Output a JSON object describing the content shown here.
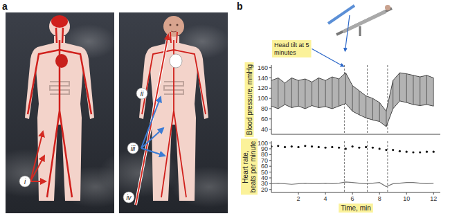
{
  "figure": {
    "panels": [
      {
        "letter": "a",
        "labels": [
          "i",
          "ii",
          "iii",
          "iv"
        ]
      },
      {
        "letter": "b"
      }
    ]
  },
  "chart_data": [
    {
      "type": "range_area",
      "x": [
        0,
        0.5,
        1,
        1.5,
        2,
        2.5,
        3,
        3.5,
        4,
        4.5,
        5,
        5.5,
        6,
        6.5,
        7,
        7.5,
        8,
        8.5,
        9,
        9.5,
        10,
        10.5,
        11,
        11.5,
        12
      ],
      "series": [
        {
          "color": "#333333",
          "values": [
            135,
            140,
            130,
            140,
            135,
            138,
            132,
            140,
            135,
            142,
            138,
            150,
            125,
            115,
            105,
            100,
            92,
            75,
            135,
            150,
            148,
            145,
            142,
            145,
            140
          ]
        },
        {
          "color": "#333333",
          "values": [
            85,
            80,
            88,
            82,
            85,
            80,
            86,
            82,
            84,
            80,
            85,
            90,
            75,
            68,
            62,
            58,
            55,
            45,
            80,
            95,
            92,
            88,
            86,
            88,
            85
          ]
        }
      ],
      "xlim": [
        0,
        12.5
      ],
      "ylim": [
        30,
        165
      ],
      "yticks": [
        40,
        60,
        80,
        100,
        120,
        140,
        160
      ],
      "y_label": "Blood pressure, mmHg",
      "tick_labels": "y",
      "grid": false,
      "annotation": {
        "text": "Head tilt at 5 minutes",
        "x": 5.4
      },
      "event_times": [
        5.4,
        7.1,
        8.6
      ]
    },
    {
      "type": "line",
      "x": [
        0,
        0.5,
        1,
        1.5,
        2,
        2.5,
        3,
        3.5,
        4,
        4.5,
        5,
        5.5,
        6,
        6.5,
        7,
        7.5,
        8,
        8.5,
        9,
        9.5,
        10,
        10.5,
        11,
        11.5,
        12
      ],
      "series": [
        {
          "color": "#111111",
          "marker": "dot",
          "line_style": "none",
          "values": [
            94,
            95,
            93,
            94,
            93,
            95,
            94,
            93,
            92,
            93,
            92,
            90,
            94,
            92,
            93,
            92,
            90,
            88,
            88,
            86,
            85,
            84,
            84,
            85,
            85
          ]
        },
        {
          "color": "#777777",
          "line_style": "solid",
          "values": [
            30,
            31,
            30,
            29,
            30,
            31,
            30,
            30,
            31,
            30,
            31,
            33,
            32,
            31,
            30,
            31,
            32,
            25,
            30,
            31,
            32,
            32,
            31,
            30,
            31
          ]
        }
      ],
      "xlim": [
        0,
        12.5
      ],
      "ylim": [
        15,
        103
      ],
      "xticks": [
        2,
        4,
        6,
        8,
        10,
        12
      ],
      "yticks": [
        20,
        30,
        40,
        50,
        60,
        70,
        80,
        90,
        100
      ],
      "x_label": "Time, min",
      "y_label": "Heart rate, beats per minute",
      "grid": false,
      "event_times": [
        5.4,
        7.1,
        8.6
      ]
    }
  ]
}
